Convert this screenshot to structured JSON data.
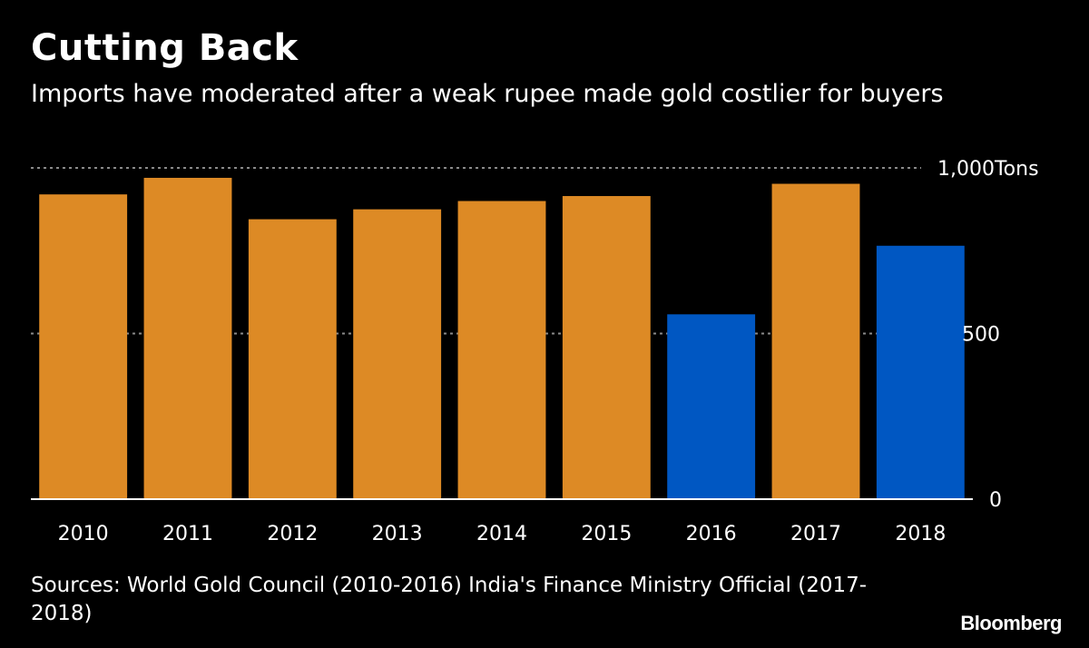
{
  "header": {
    "title": "Cutting Back",
    "subtitle": "Imports have moderated after a weak rupee made gold costlier for buyers"
  },
  "footer": {
    "source": "Sources: World Gold Council (2010-2016) India's Finance Ministry Official (2017-2018)",
    "logo": "Bloomberg"
  },
  "colors": {
    "background": "#000000",
    "primary_bar": "#DD8A25",
    "highlight_bar": "#0057C2",
    "gridline": "#8A8A8A",
    "axis": "#FFFFFF"
  },
  "chart_data": {
    "type": "bar",
    "title": "Cutting Back",
    "subtitle": "Imports have moderated after a weak rupee made gold costlier for buyers",
    "xlabel": "",
    "ylabel": "Tons",
    "categories": [
      "2010",
      "2011",
      "2012",
      "2013",
      "2014",
      "2015",
      "2016",
      "2017",
      "2018"
    ],
    "values": [
      920,
      970,
      845,
      875,
      900,
      915,
      558,
      952,
      765
    ],
    "highlighted": [
      false,
      false,
      false,
      false,
      false,
      false,
      true,
      false,
      true
    ],
    "ylim": [
      0,
      1000
    ],
    "yticks": [
      {
        "value": 0,
        "label": "0"
      },
      {
        "value": 500,
        "label": "500"
      },
      {
        "value": 1000,
        "label": "1,000Tons"
      }
    ],
    "grid": true,
    "legend": "none",
    "y_axis_side": "right"
  }
}
